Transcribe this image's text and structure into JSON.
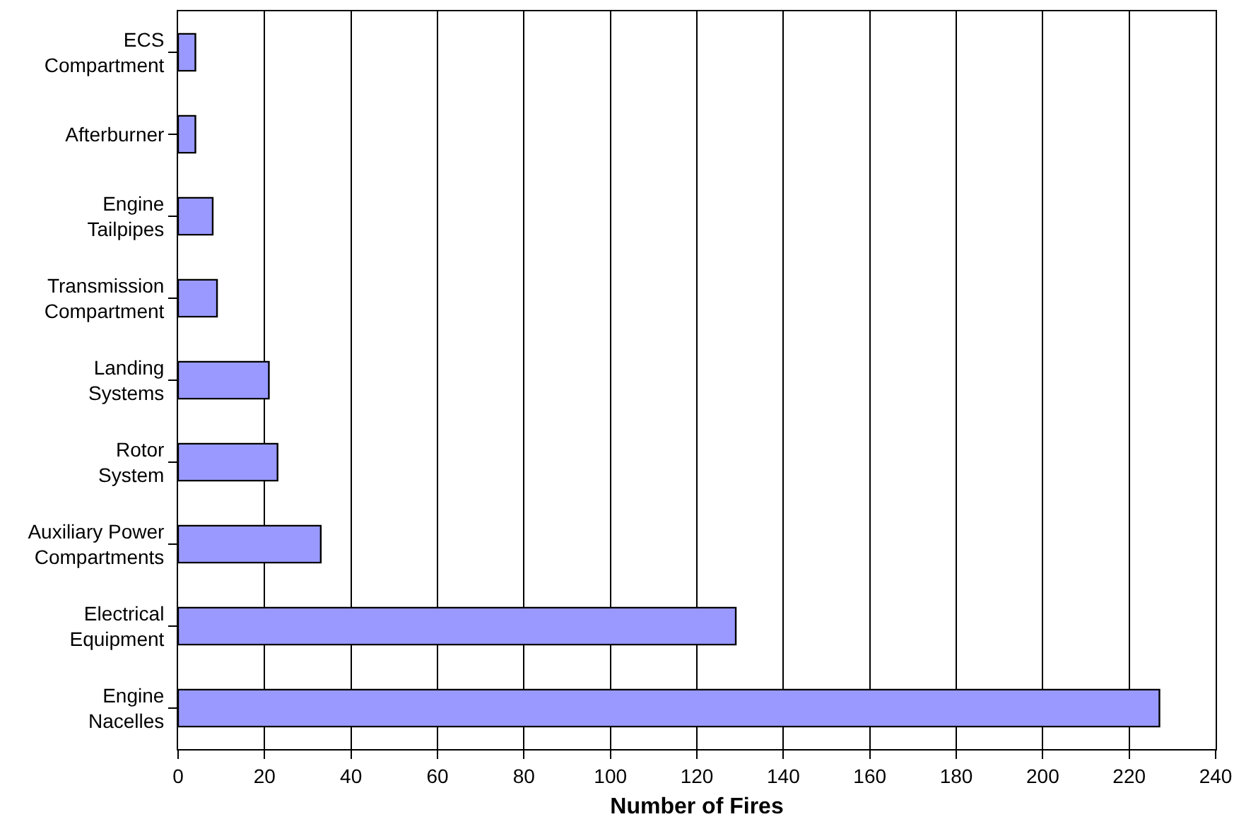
{
  "chart_data": {
    "type": "bar",
    "orientation": "horizontal",
    "xlabel": "Number of Fires",
    "categories": [
      "ECS Compartment",
      "Afterburner",
      "Engine Tailpipes",
      "Transmission Compartment",
      "Landing Systems",
      "Rotor System",
      "Auxiliary Power Compartments",
      "Electrical Equipment",
      "Engine Nacelles"
    ],
    "values": [
      4,
      4,
      8,
      9,
      21,
      23,
      33,
      129,
      227
    ],
    "color": "#9999ff",
    "xlim": [
      0,
      240
    ],
    "xticks": [
      0,
      20,
      40,
      60,
      80,
      100,
      120,
      140,
      160,
      180,
      200,
      220,
      240
    ],
    "grid": "x"
  }
}
